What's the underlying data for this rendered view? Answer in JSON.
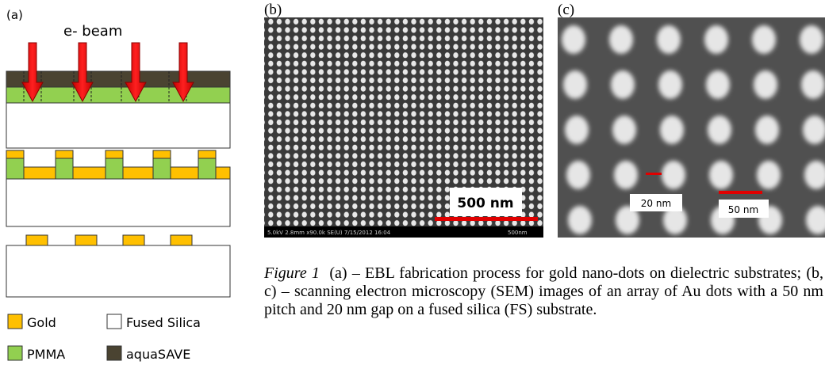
{
  "panel_a": {
    "label": "(a)",
    "beam_label": "e-  beam",
    "legend": [
      "Gold",
      "Fused Silica",
      "PMMA",
      "aquaSAVE"
    ]
  },
  "panel_b": {
    "label": "(b)",
    "scale_bar": "500 nm",
    "info_bar": "5.0kV 2.8mm x90.0k SE(U) 7/15/2012 16:04",
    "info_scale": "500nm"
  },
  "panel_c": {
    "label": "(c)",
    "scale_labels": [
      "20 nm",
      "50 nm"
    ]
  },
  "caption": {
    "figure_label": "Figure 1",
    "text": "(a) – EBL fabrication process for gold nano-dots on dielectric substrates; (b, c) – scanning electron microscopy (SEM) images of an array of Au dots with a 50 nm pitch and 20 nm gap on a fused silica (FS) substrate."
  }
}
